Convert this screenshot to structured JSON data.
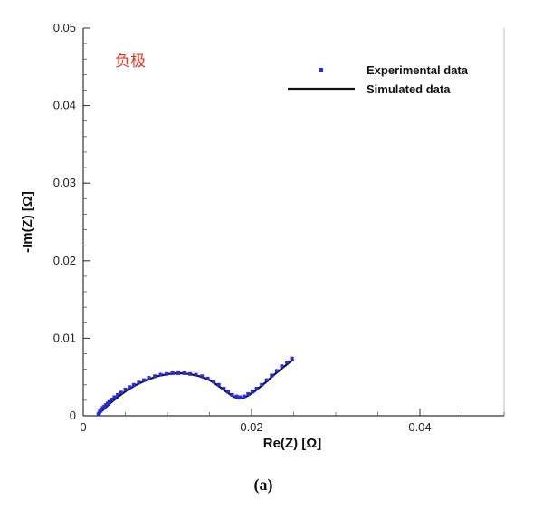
{
  "chart_data": {
    "type": "scatter",
    "title": "",
    "annotation": "负极",
    "caption": "(a)",
    "xlabel": "Re(Z) [Ω]",
    "ylabel": "-Im(Z) [Ω]",
    "xlim": [
      0,
      0.05
    ],
    "ylim": [
      0,
      0.05
    ],
    "x_ticks": [
      0,
      0.02,
      0.04
    ],
    "x_tick_labels": [
      "0",
      "0.02",
      "0.04"
    ],
    "y_ticks": [
      0,
      0.01,
      0.02,
      0.03,
      0.04,
      0.05
    ],
    "y_tick_labels": [
      "0",
      "0.01",
      "0.02",
      "0.03",
      "0.04",
      "0.05"
    ],
    "grid": false,
    "legend_position": "top-right",
    "colors": {
      "experimental": "#2b2bd6",
      "simulated": "#111111",
      "annotation": "#e8351e"
    },
    "series": [
      {
        "name": "Experimental data",
        "style": "markers",
        "points": [
          [
            0.0018,
            0.0002
          ],
          [
            0.0019,
            0.0004
          ],
          [
            0.002,
            0.0006
          ],
          [
            0.0021,
            0.0008
          ],
          [
            0.0023,
            0.001
          ],
          [
            0.0025,
            0.0012
          ],
          [
            0.0027,
            0.0014
          ],
          [
            0.0029,
            0.0016
          ],
          [
            0.0031,
            0.0018
          ],
          [
            0.0034,
            0.0021
          ],
          [
            0.0037,
            0.0024
          ],
          [
            0.0041,
            0.0027
          ],
          [
            0.0045,
            0.003
          ],
          [
            0.005,
            0.0034
          ],
          [
            0.0055,
            0.0037
          ],
          [
            0.006,
            0.004
          ],
          [
            0.0066,
            0.0043
          ],
          [
            0.0072,
            0.0046
          ],
          [
            0.0078,
            0.0049
          ],
          [
            0.0085,
            0.0051
          ],
          [
            0.0092,
            0.0053
          ],
          [
            0.0099,
            0.0054
          ],
          [
            0.0106,
            0.0055
          ],
          [
            0.0113,
            0.0055
          ],
          [
            0.012,
            0.0055
          ],
          [
            0.0127,
            0.0054
          ],
          [
            0.0134,
            0.0053
          ],
          [
            0.0141,
            0.0051
          ],
          [
            0.0148,
            0.0048
          ],
          [
            0.0155,
            0.0044
          ],
          [
            0.0161,
            0.004
          ],
          [
            0.0167,
            0.0035
          ],
          [
            0.0172,
            0.0031
          ],
          [
            0.0177,
            0.0027
          ],
          [
            0.0182,
            0.0025
          ],
          [
            0.0186,
            0.0024
          ],
          [
            0.0191,
            0.0025
          ],
          [
            0.0196,
            0.0028
          ],
          [
            0.0201,
            0.0031
          ],
          [
            0.0206,
            0.0035
          ],
          [
            0.0212,
            0.004
          ],
          [
            0.0218,
            0.0046
          ],
          [
            0.0224,
            0.0052
          ],
          [
            0.023,
            0.0058
          ],
          [
            0.0236,
            0.0064
          ],
          [
            0.0242,
            0.0069
          ],
          [
            0.0248,
            0.0074
          ]
        ]
      },
      {
        "name": "Simulated data",
        "style": "line",
        "points": [
          [
            0.0018,
            0.0001
          ],
          [
            0.0021,
            0.0005
          ],
          [
            0.0026,
            0.001
          ],
          [
            0.0033,
            0.0017
          ],
          [
            0.0042,
            0.0025
          ],
          [
            0.0052,
            0.0033
          ],
          [
            0.0063,
            0.004
          ],
          [
            0.0075,
            0.0046
          ],
          [
            0.0088,
            0.0051
          ],
          [
            0.0101,
            0.0054
          ],
          [
            0.0114,
            0.0055
          ],
          [
            0.0126,
            0.0054
          ],
          [
            0.0138,
            0.0051
          ],
          [
            0.015,
            0.0046
          ],
          [
            0.016,
            0.0039
          ],
          [
            0.017,
            0.0031
          ],
          [
            0.0178,
            0.0025
          ],
          [
            0.0185,
            0.0022
          ],
          [
            0.019,
            0.0023
          ],
          [
            0.0196,
            0.0026
          ],
          [
            0.0203,
            0.0031
          ],
          [
            0.0211,
            0.0038
          ],
          [
            0.0219,
            0.0045
          ],
          [
            0.0227,
            0.0053
          ],
          [
            0.0236,
            0.0061
          ],
          [
            0.0244,
            0.0068
          ],
          [
            0.025,
            0.0073
          ]
        ]
      }
    ]
  }
}
